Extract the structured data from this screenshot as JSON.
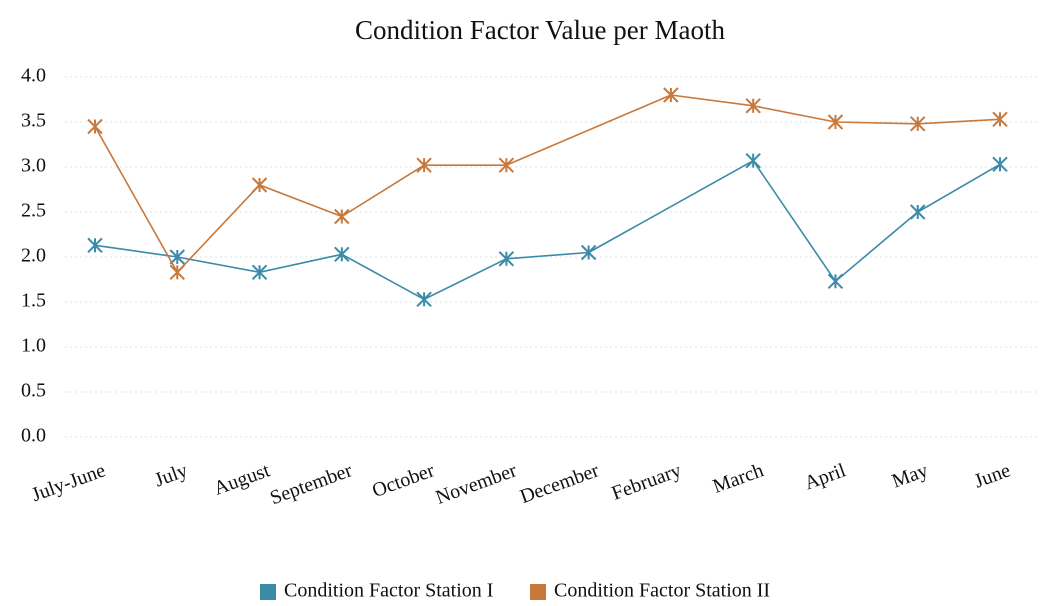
{
  "chart_data": {
    "type": "line",
    "title": "Condition Factor Value per Maoth",
    "categories": [
      "July-June",
      "July",
      "August",
      "September",
      "October",
      "November",
      "December",
      "February",
      "March",
      "April",
      "May",
      "June"
    ],
    "series": [
      {
        "name": "Condition Factor Station I",
        "color": "#3a8aa8",
        "values": [
          2.13,
          2.0,
          1.83,
          2.03,
          1.53,
          1.98,
          2.05,
          null,
          3.07,
          1.73,
          2.5,
          3.03
        ]
      },
      {
        "name": "Condition Factor Station II",
        "color": "#c8783a",
        "values": [
          3.45,
          1.83,
          2.8,
          2.45,
          3.02,
          3.02,
          null,
          3.8,
          3.68,
          3.5,
          3.48,
          3.53
        ]
      }
    ],
    "ylim": [
      0,
      4
    ],
    "yticks": [
      {
        "value": 0,
        "label": "0.0"
      },
      0.5,
      {
        "value": 1,
        "label": "1.0"
      },
      1.5,
      {
        "value": 2,
        "label": "2.0"
      },
      2.5,
      {
        "value": 3,
        "label": "3.0"
      },
      3.5,
      {
        "value": 4,
        "label": "4.0"
      }
    ],
    "grid": true,
    "legend": "bottom"
  }
}
